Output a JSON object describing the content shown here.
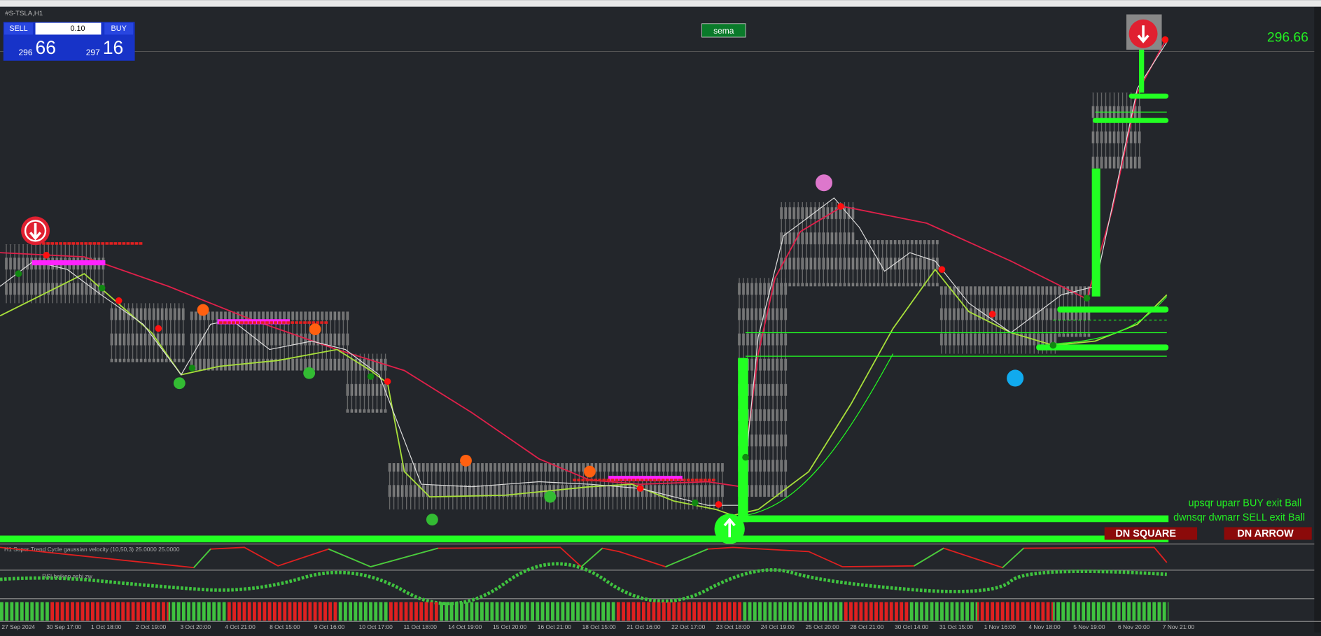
{
  "window_title": "#S-TSLA,H1",
  "trade_panel": {
    "sell": "SELL",
    "buy": "BUY",
    "lot": "0.10",
    "bid_big": "66",
    "bid_small": "296",
    "ask_big": "16",
    "ask_small": "297"
  },
  "sema": "sema",
  "price": "296.66",
  "legend": [
    "upsqr uparr BUY exit Ball",
    "dwnsqr dwnarr SELL exit Ball"
  ],
  "signals": [
    "DN SQUARE",
    "DN ARROW"
  ],
  "indicators": [
    "H1 Super Trend Cycle gaussian velocity (10,50,3) 25.0000 25.0000",
    "RSI heiken ashi zw"
  ],
  "time_axis": [
    "27 Sep 2024",
    "30 Sep 17:00",
    "1 Oct 18:00",
    "2 Oct 19:00",
    "3 Oct 20:00",
    "4 Oct 21:00",
    "8 Oct 15:00",
    "9 Oct 16:00",
    "10 Oct 17:00",
    "11 Oct 18:00",
    "14 Oct 19:00",
    "15 Oct 20:00",
    "16 Oct 21:00",
    "18 Oct 15:00",
    "21 Oct 16:00",
    "22 Oct 17:00",
    "23 Oct 18:00",
    "24 Oct 19:00",
    "25 Oct 20:00",
    "28 Oct 21:00",
    "30 Oct 14:00",
    "31 Oct 15:00",
    "1 Nov 16:00",
    "4 Nov 18:00",
    "5 Nov 19:00",
    "6 Nov 20:00",
    "7 Nov 21:00"
  ]
}
